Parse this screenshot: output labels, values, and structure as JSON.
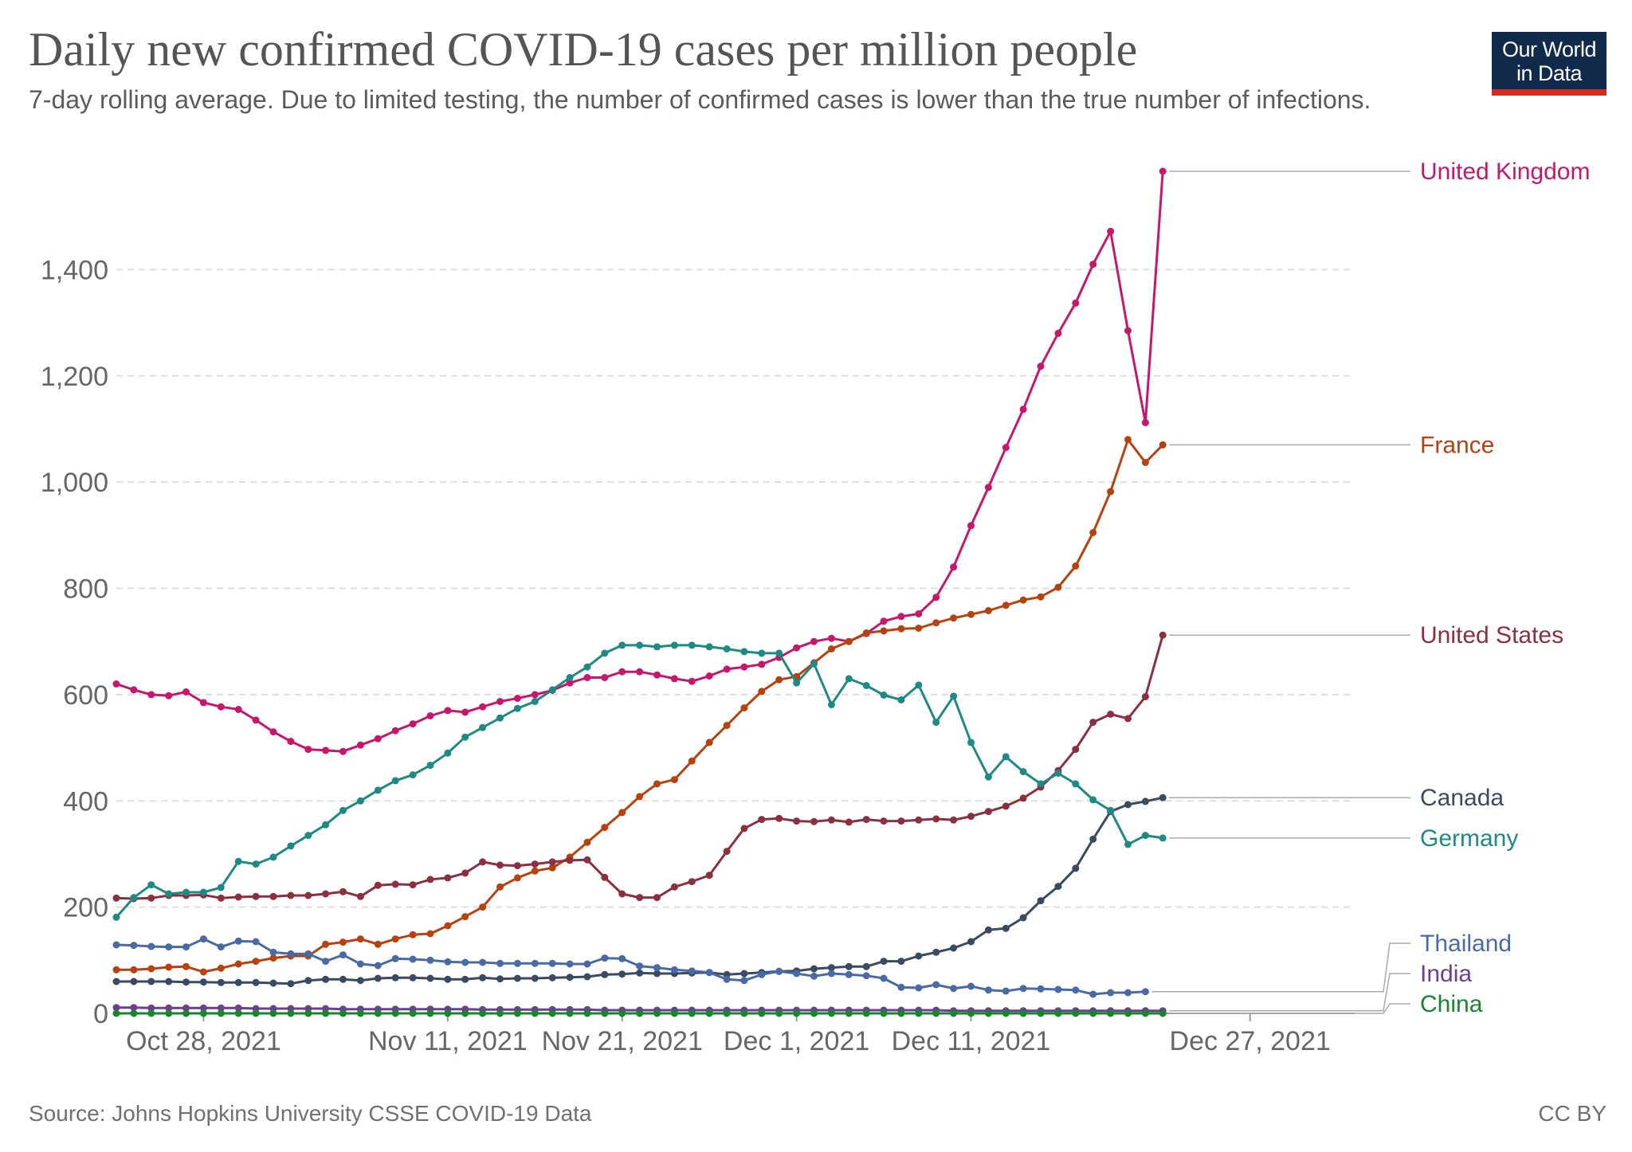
{
  "header": {
    "title": "Daily new confirmed COVID-19 cases per million people",
    "subtitle": "7-day rolling average. Due to limited testing, the number of confirmed cases is lower than the true number of infections."
  },
  "logo": {
    "line1": "Our World",
    "line2": "in Data",
    "bg": "#0f2a4b",
    "accent": "#d42b21"
  },
  "footer": {
    "source": "Source: Johns Hopkins University CSSE COVID-19 Data",
    "license": "CC BY"
  },
  "chart_data": {
    "type": "line",
    "x_start": "2021-10-23",
    "x_end": "2022-01-02",
    "x_ticks": [
      {
        "label": "Oct 28, 2021",
        "date": "2021-10-28"
      },
      {
        "label": "Nov 11, 2021",
        "date": "2021-11-11"
      },
      {
        "label": "Nov 21, 2021",
        "date": "2021-11-21"
      },
      {
        "label": "Dec 1, 2021",
        "date": "2021-12-01"
      },
      {
        "label": "Dec 11, 2021",
        "date": "2021-12-11"
      },
      {
        "label": "Dec 27, 2021",
        "date": "2021-12-27"
      }
    ],
    "y_ticks": [
      {
        "label": "0",
        "value": 0
      },
      {
        "label": "200",
        "value": 200
      },
      {
        "label": "400",
        "value": 400
      },
      {
        "label": "600",
        "value": 600
      },
      {
        "label": "800",
        "value": 800
      },
      {
        "label": "1,000",
        "value": 1000
      },
      {
        "label": "1,200",
        "value": 1200
      },
      {
        "label": "1,400",
        "value": 1400
      }
    ],
    "ylim": [
      0,
      1600
    ],
    "grid": "horizontal dashed",
    "legend": "right, labels at line ends",
    "series": [
      {
        "name": "United Kingdom",
        "color": "#c6166e",
        "values": [
          620,
          609,
          600,
          598,
          605,
          585,
          577,
          572,
          552,
          530,
          512,
          497,
          495,
          493,
          505,
          517,
          532,
          545,
          560,
          570,
          567,
          577,
          587,
          593,
          600,
          608,
          622,
          632,
          632,
          643,
          643,
          637,
          630,
          625,
          635,
          648,
          652,
          657,
          670,
          688,
          700,
          706,
          700,
          715,
          738,
          747,
          752,
          783,
          840,
          918,
          990,
          1065,
          1137,
          1218,
          1280,
          1337,
          1410,
          1472,
          1285,
          1112,
          1585
        ]
      },
      {
        "name": "France",
        "color": "#b8420f",
        "values": [
          82,
          82,
          84,
          87,
          88,
          78,
          85,
          93,
          98,
          104,
          108,
          108,
          130,
          134,
          140,
          130,
          140,
          148,
          150,
          165,
          182,
          200,
          238,
          255,
          268,
          274,
          294,
          322,
          350,
          378,
          408,
          432,
          440,
          475,
          510,
          542,
          575,
          606,
          628,
          634,
          660,
          686,
          700,
          716,
          720,
          724,
          725,
          735,
          744,
          751,
          758,
          768,
          778,
          784,
          802,
          842,
          905,
          982,
          1080,
          1037,
          1070
        ]
      },
      {
        "name": "United States",
        "color": "#8c2f3e",
        "values": [
          217,
          216,
          217,
          222,
          222,
          223,
          217,
          219,
          220,
          220,
          222,
          222,
          225,
          229,
          220,
          241,
          243,
          242,
          252,
          255,
          264,
          285,
          279,
          278,
          281,
          285,
          288,
          289,
          256,
          225,
          218,
          218,
          238,
          248,
          260,
          305,
          348,
          365,
          367,
          362,
          361,
          364,
          360,
          365,
          362,
          362,
          364,
          366,
          364,
          371,
          380,
          390,
          405,
          426,
          457,
          497,
          548,
          563,
          555,
          596,
          712
        ]
      },
      {
        "name": "Canada",
        "color": "#3b4a63",
        "values": [
          60,
          60,
          60,
          60,
          59,
          59,
          58,
          58,
          58,
          57,
          56,
          62,
          64,
          64,
          62,
          66,
          67,
          67,
          66,
          64,
          64,
          67,
          65,
          66,
          66,
          67,
          68,
          69,
          73,
          74,
          76,
          75,
          75,
          76,
          77,
          73,
          75,
          77,
          79,
          80,
          84,
          86,
          88,
          88,
          98,
          98,
          108,
          115,
          123,
          135,
          157,
          160,
          180,
          212,
          239,
          273,
          328,
          380,
          393,
          399,
          406
        ]
      },
      {
        "name": "Germany",
        "color": "#1e8a83",
        "values": [
          181,
          218,
          242,
          225,
          228,
          228,
          237,
          286,
          281,
          294,
          315,
          335,
          355,
          382,
          400,
          420,
          438,
          449,
          467,
          490,
          520,
          538,
          556,
          574,
          587,
          609,
          632,
          652,
          678,
          693,
          693,
          690,
          693,
          693,
          690,
          686,
          681,
          678,
          678,
          622,
          658,
          581,
          630,
          617,
          599,
          590,
          618,
          548,
          597,
          510,
          445,
          483,
          455,
          432,
          452,
          432,
          402,
          382,
          318,
          335,
          330
        ]
      },
      {
        "name": "Thailand",
        "color": "#4a6aa5",
        "values": [
          129,
          128,
          126,
          125,
          125,
          140,
          125,
          136,
          135,
          115,
          112,
          112,
          98,
          110,
          93,
          90,
          103,
          102,
          100,
          97,
          96,
          96,
          94,
          94,
          94,
          94,
          93,
          93,
          104,
          103,
          89,
          86,
          82,
          80,
          77,
          64,
          62,
          73,
          79,
          75,
          70,
          75,
          73,
          71,
          66,
          49,
          48,
          54,
          47,
          51,
          44,
          42,
          47,
          46,
          45,
          44,
          36,
          39,
          39,
          41,
          null
        ]
      },
      {
        "name": "India",
        "color": "#6d3e91",
        "values": [
          11,
          11,
          10,
          10,
          10,
          10,
          10,
          10,
          9,
          9,
          9,
          9,
          9,
          8,
          8,
          8,
          8,
          8,
          8,
          8,
          8,
          7,
          7,
          7,
          7,
          7,
          7,
          7,
          6,
          6,
          6,
          6,
          6,
          6,
          6,
          6,
          6,
          6,
          6,
          6,
          6,
          6,
          6,
          6,
          6,
          6,
          6,
          6,
          5,
          5,
          5,
          5,
          5,
          5,
          5,
          5,
          5,
          5,
          5,
          5,
          5
        ]
      },
      {
        "name": "China",
        "color": "#18862f",
        "values": [
          0,
          0,
          0,
          0,
          0,
          0,
          0,
          0,
          0,
          0,
          0,
          0,
          0,
          0,
          0,
          0,
          0,
          0,
          0,
          0,
          0,
          0,
          0,
          0,
          0,
          0,
          0,
          0,
          0,
          0,
          0,
          0,
          0,
          0,
          0,
          0,
          0,
          0,
          0,
          0,
          0,
          0,
          0,
          0,
          0,
          0,
          0,
          0,
          0,
          0,
          0,
          0,
          0,
          0,
          0,
          0,
          0,
          0,
          0,
          0,
          0
        ]
      }
    ]
  }
}
